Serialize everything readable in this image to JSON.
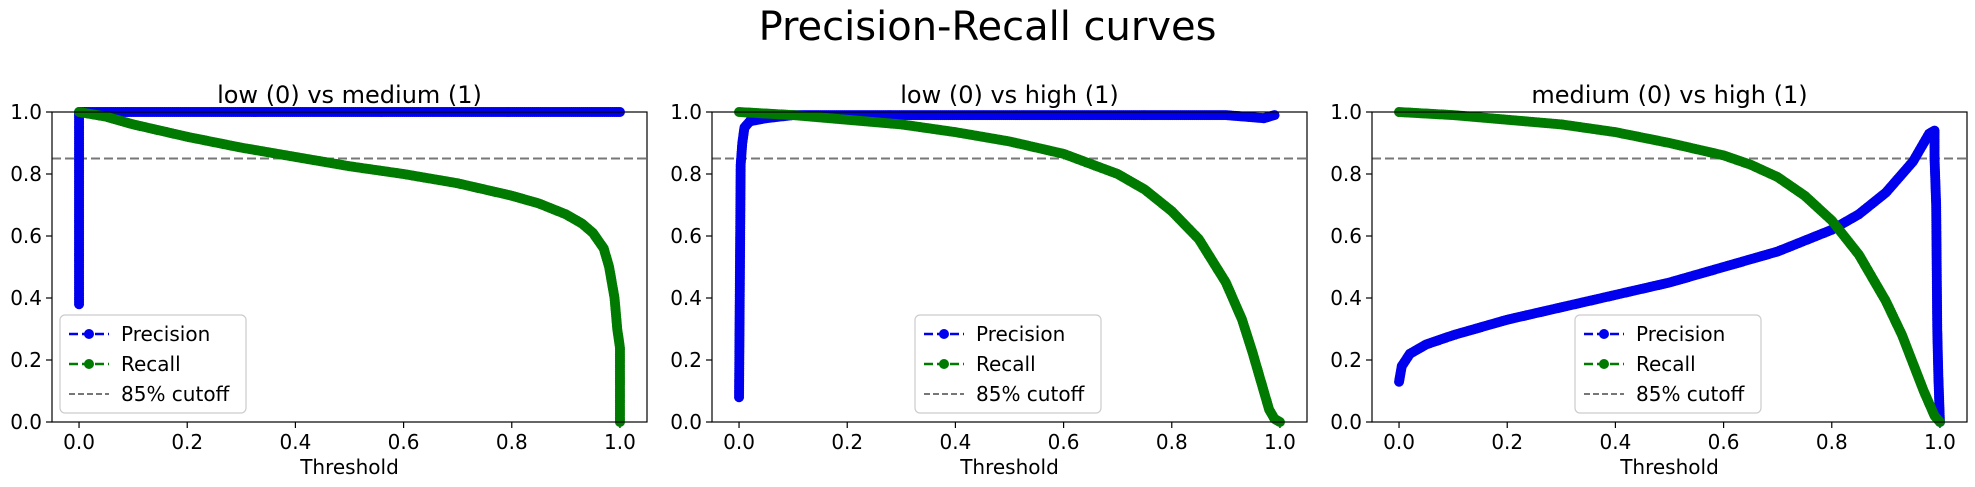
{
  "figure": {
    "title": "Precision-Recall curves"
  },
  "colors": {
    "precision": "#0000ee",
    "recall": "#007a00",
    "cutoff": "#777777"
  },
  "chart_data": [
    {
      "type": "line",
      "title": "low (0) vs medium (1)",
      "xlabel": "Threshold",
      "ylabel": "",
      "xlim": [
        -0.05,
        1.05
      ],
      "ylim": [
        0,
        1
      ],
      "xticks": [
        "0.0",
        "0.2",
        "0.4",
        "0.6",
        "0.8",
        "1.0"
      ],
      "yticks": [
        "0.0",
        "0.2",
        "0.4",
        "0.6",
        "0.8",
        "1.0"
      ],
      "cutoff": 0.85,
      "legend_position": "lower-left",
      "legend": [
        "Precision",
        "Recall",
        "85% cutoff"
      ],
      "series": [
        {
          "name": "Precision",
          "x": [
            0.0,
            0.0,
            0.0,
            0.01,
            0.1,
            0.3,
            0.5,
            0.7,
            0.9,
            0.99,
            1.0
          ],
          "y": [
            0.38,
            0.99,
            1.0,
            1.0,
            1.0,
            1.0,
            1.0,
            1.0,
            1.0,
            1.0,
            1.0
          ]
        },
        {
          "name": "Recall",
          "x": [
            0.0,
            0.05,
            0.1,
            0.2,
            0.3,
            0.4,
            0.5,
            0.6,
            0.7,
            0.8,
            0.85,
            0.9,
            0.93,
            0.95,
            0.97,
            0.98,
            0.99,
            0.995,
            1.0,
            1.0
          ],
          "y": [
            1.0,
            0.985,
            0.96,
            0.92,
            0.885,
            0.855,
            0.825,
            0.8,
            0.77,
            0.73,
            0.705,
            0.67,
            0.64,
            0.61,
            0.56,
            0.5,
            0.4,
            0.3,
            0.24,
            0.0
          ]
        }
      ]
    },
    {
      "type": "line",
      "title": "low (0) vs high (1)",
      "xlabel": "Threshold",
      "ylabel": "",
      "xlim": [
        -0.05,
        1.05
      ],
      "ylim": [
        0,
        1
      ],
      "xticks": [
        "0.0",
        "0.2",
        "0.4",
        "0.6",
        "0.8",
        "1.0"
      ],
      "yticks": [
        "0.0",
        "0.2",
        "0.4",
        "0.6",
        "0.8",
        "1.0"
      ],
      "cutoff": 0.85,
      "legend_position": "lower-center",
      "legend": [
        "Precision",
        "Recall",
        "85% cutoff"
      ],
      "series": [
        {
          "name": "Precision",
          "x": [
            0.0,
            0.003,
            0.006,
            0.01,
            0.02,
            0.05,
            0.1,
            0.3,
            0.5,
            0.7,
            0.9,
            0.97,
            0.99
          ],
          "y": [
            0.08,
            0.83,
            0.9,
            0.95,
            0.97,
            0.98,
            0.99,
            0.99,
            0.99,
            0.99,
            0.99,
            0.98,
            0.99
          ]
        },
        {
          "name": "Recall",
          "x": [
            0.0,
            0.1,
            0.2,
            0.3,
            0.4,
            0.5,
            0.6,
            0.7,
            0.75,
            0.8,
            0.85,
            0.9,
            0.93,
            0.95,
            0.97,
            0.98,
            0.99,
            1.0
          ],
          "y": [
            1.0,
            0.99,
            0.975,
            0.96,
            0.935,
            0.905,
            0.865,
            0.8,
            0.75,
            0.68,
            0.59,
            0.45,
            0.33,
            0.22,
            0.1,
            0.04,
            0.01,
            0.0
          ]
        }
      ]
    },
    {
      "type": "line",
      "title": "medium (0) vs high (1)",
      "xlabel": "Threshold",
      "ylabel": "",
      "xlim": [
        -0.05,
        1.05
      ],
      "ylim": [
        0,
        1
      ],
      "xticks": [
        "0.0",
        "0.2",
        "0.4",
        "0.6",
        "0.8",
        "1.0"
      ],
      "yticks": [
        "0.0",
        "0.2",
        "0.4",
        "0.6",
        "0.8",
        "1.0"
      ],
      "cutoff": 0.85,
      "legend_position": "lower-center",
      "legend": [
        "Precision",
        "Recall",
        "85% cutoff"
      ],
      "series": [
        {
          "name": "Precision",
          "x": [
            0.0,
            0.005,
            0.02,
            0.05,
            0.1,
            0.2,
            0.3,
            0.4,
            0.5,
            0.6,
            0.7,
            0.8,
            0.85,
            0.9,
            0.95,
            0.98,
            0.99,
            0.99,
            0.993,
            0.995,
            0.997,
            1.0
          ],
          "y": [
            0.13,
            0.18,
            0.22,
            0.25,
            0.28,
            0.33,
            0.37,
            0.41,
            0.45,
            0.5,
            0.55,
            0.62,
            0.67,
            0.74,
            0.84,
            0.93,
            0.94,
            0.85,
            0.7,
            0.3,
            0.15,
            0.0
          ]
        },
        {
          "name": "Recall",
          "x": [
            0.0,
            0.1,
            0.2,
            0.3,
            0.4,
            0.5,
            0.6,
            0.65,
            0.7,
            0.75,
            0.8,
            0.85,
            0.9,
            0.93,
            0.95,
            0.97,
            0.99,
            1.0
          ],
          "y": [
            1.0,
            0.99,
            0.975,
            0.96,
            0.935,
            0.9,
            0.86,
            0.83,
            0.79,
            0.73,
            0.65,
            0.54,
            0.39,
            0.28,
            0.19,
            0.1,
            0.02,
            0.0
          ]
        }
      ]
    }
  ]
}
